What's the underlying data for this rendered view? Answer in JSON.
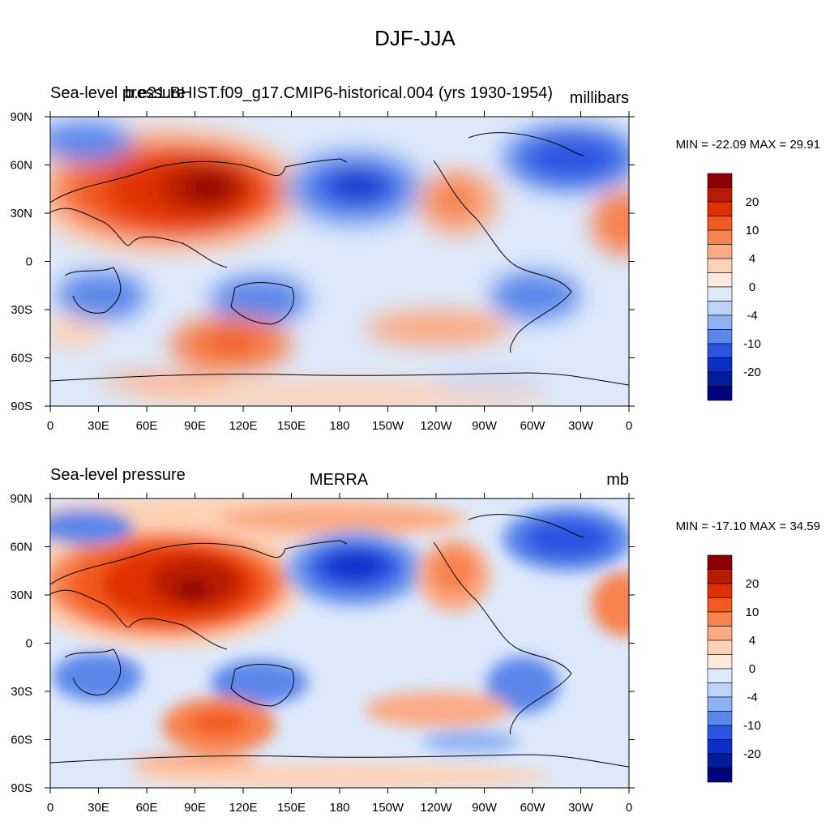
{
  "main_title": "DJF-JJA",
  "panels": [
    {
      "left_label": "Sea-level pressure",
      "center_label": "b.e21.BHIST.f09_g17.CMIP6-historical.004 (yrs 1930-1954)",
      "units": "millibars",
      "stats": "MIN = -22.09 MAX =  29.91"
    },
    {
      "left_label": "Sea-level pressure",
      "center_label": "MERRA",
      "units": "mb",
      "stats": "MIN = -17.10 MAX =  34.59"
    }
  ],
  "colorbar": {
    "labels": [
      "20",
      "10",
      "4",
      "0",
      "-4",
      "-10",
      "-20"
    ],
    "colors": [
      "#8c0000",
      "#b81c00",
      "#e03000",
      "#f25a1e",
      "#f7834f",
      "#fbaa83",
      "#fdd1b5",
      "#fdeadc",
      "#dde9fb",
      "#bcd3f7",
      "#8fb2f2",
      "#5c87ea",
      "#2a55e2",
      "#0a2fc8",
      "#001e99",
      "#000080"
    ]
  },
  "chart_data": [
    {
      "type": "heatmap",
      "title": "DJF-JJA",
      "subtitle": "b.e21.BHIST.f09_g17.CMIP6-historical.004 (yrs 1930-1954)",
      "variable": "Sea-level pressure",
      "units": "millibars",
      "min": -22.09,
      "max": 29.91,
      "x_ticks": [
        "0",
        "30E",
        "60E",
        "90E",
        "120E",
        "150E",
        "180",
        "150W",
        "120W",
        "90W",
        "60W",
        "30W",
        "0"
      ],
      "y_ticks": [
        "90N",
        "60N",
        "30N",
        "0",
        "30S",
        "60S",
        "90S"
      ],
      "levels": [
        -20,
        -10,
        -4,
        0,
        4,
        10,
        20
      ]
    },
    {
      "type": "heatmap",
      "title": "MERRA",
      "variable": "Sea-level pressure",
      "units": "mb",
      "min": -17.1,
      "max": 34.59,
      "x_ticks": [
        "0",
        "30E",
        "60E",
        "90E",
        "120E",
        "150E",
        "180",
        "150W",
        "120W",
        "90W",
        "60W",
        "30W",
        "0"
      ],
      "y_ticks": [
        "90N",
        "60N",
        "30N",
        "0",
        "30S",
        "60S",
        "90S"
      ],
      "levels": [
        -20,
        -10,
        -4,
        0,
        4,
        10,
        20
      ]
    }
  ]
}
